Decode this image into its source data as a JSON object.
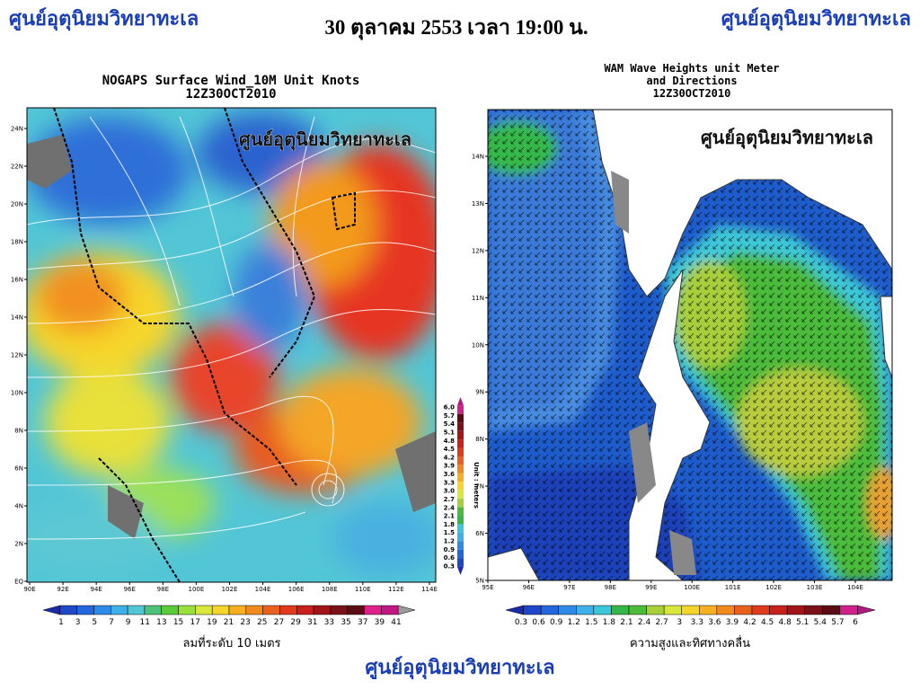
{
  "header": {
    "left_org": "ศูนย์อุตุนิยมวิทยาทะเล",
    "title": "30 ตุลาคม 2553 เวลา 19:00 น.",
    "right_org": "ศูนย์อุตุนิยมวิทยาทะเล"
  },
  "left_map": {
    "title": "NOGAPS Surface Wind_10M Unit Knots",
    "subtitle": "12Z30OCT2010",
    "watermark": "ศูนย์อุตุนิยมวิทยาทะเล",
    "lat_labels": [
      "24N",
      "22N",
      "20N",
      "18N",
      "16N",
      "14N",
      "12N",
      "10N",
      "8N",
      "6N",
      "4N",
      "2N",
      "EQ"
    ],
    "lon_labels": [
      "90E",
      "92E",
      "94E",
      "96E",
      "98E",
      "100E",
      "102E",
      "104E",
      "106E",
      "108E",
      "110E",
      "112E",
      "114E"
    ],
    "colorbar_labels": [
      "1",
      "3",
      "5",
      "7",
      "9",
      "11",
      "13",
      "15",
      "17",
      "19",
      "21",
      "23",
      "25",
      "27",
      "29",
      "31",
      "33",
      "35",
      "37",
      "39",
      "41"
    ],
    "caption": "ลมที่ระดับ 10 เมตร"
  },
  "vertical_colorbar": {
    "unit": "Unit : meters",
    "labels": [
      "6.0",
      "5.7",
      "5.4",
      "5.1",
      "4.8",
      "4.5",
      "4.2",
      "3.9",
      "3.6",
      "3.3",
      "3.0",
      "2.7",
      "2.4",
      "2.1",
      "1.8",
      "1.5",
      "1.2",
      "0.9",
      "0.6",
      "0.3"
    ]
  },
  "right_map": {
    "title_lines": [
      "WAM Wave Heights unit Meter",
      "and Directions",
      "12Z30OCT2010"
    ],
    "watermark": "ศูนย์อุตุนิยมวิทยาทะเล",
    "lat_labels": [
      "14N",
      "13N",
      "12N",
      "11N",
      "10N",
      "9N",
      "8N",
      "7N",
      "6N",
      "5N"
    ],
    "lon_labels": [
      "95E",
      "96E",
      "97E",
      "98E",
      "99E",
      "100E",
      "101E",
      "102E",
      "103E",
      "104E"
    ],
    "colorbar_labels": [
      "0.3",
      "0.6",
      "0.9",
      "1.2",
      "1.5",
      "1.8",
      "2.1",
      "2.4",
      "2.7",
      "3",
      "3.3",
      "3.6",
      "3.9",
      "4.2",
      "4.5",
      "4.8",
      "5.1",
      "5.4",
      "5.7",
      "6"
    ],
    "caption": "ความสูงและทิศทางคลื่น"
  },
  "footer": {
    "org": "ศูนย์อุตุนิยมวิทยาทะเล"
  }
}
